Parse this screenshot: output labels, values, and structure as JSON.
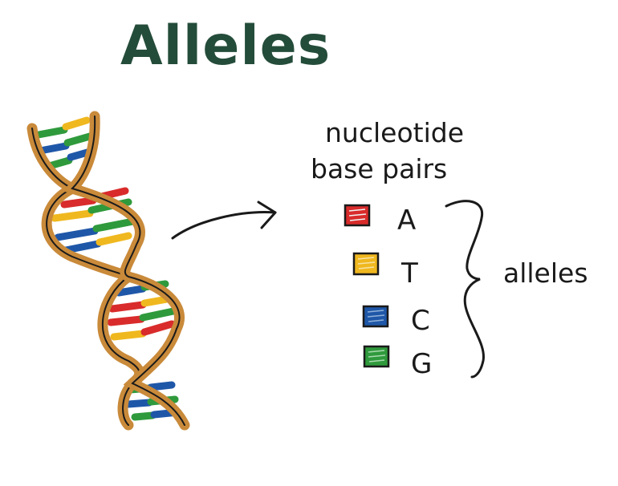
{
  "title": "Alleles",
  "heading_line1": "nucleotide",
  "heading_line2": "base pairs",
  "bracket_label": "alleles",
  "colors": {
    "title": "#244c3a",
    "ink": "#1a1a1a",
    "backbone": "#c98a3a",
    "A": "#d92b2b",
    "T": "#f0b81f",
    "C": "#1f57a8",
    "G": "#2f9a3c"
  },
  "bases": [
    {
      "letter": "A",
      "color_key": "A",
      "swatch_icon": "red-swatch-icon"
    },
    {
      "letter": "T",
      "color_key": "T",
      "swatch_icon": "yellow-swatch-icon"
    },
    {
      "letter": "C",
      "color_key": "C",
      "swatch_icon": "blue-swatch-icon"
    },
    {
      "letter": "G",
      "color_key": "G",
      "swatch_icon": "green-swatch-icon"
    }
  ]
}
